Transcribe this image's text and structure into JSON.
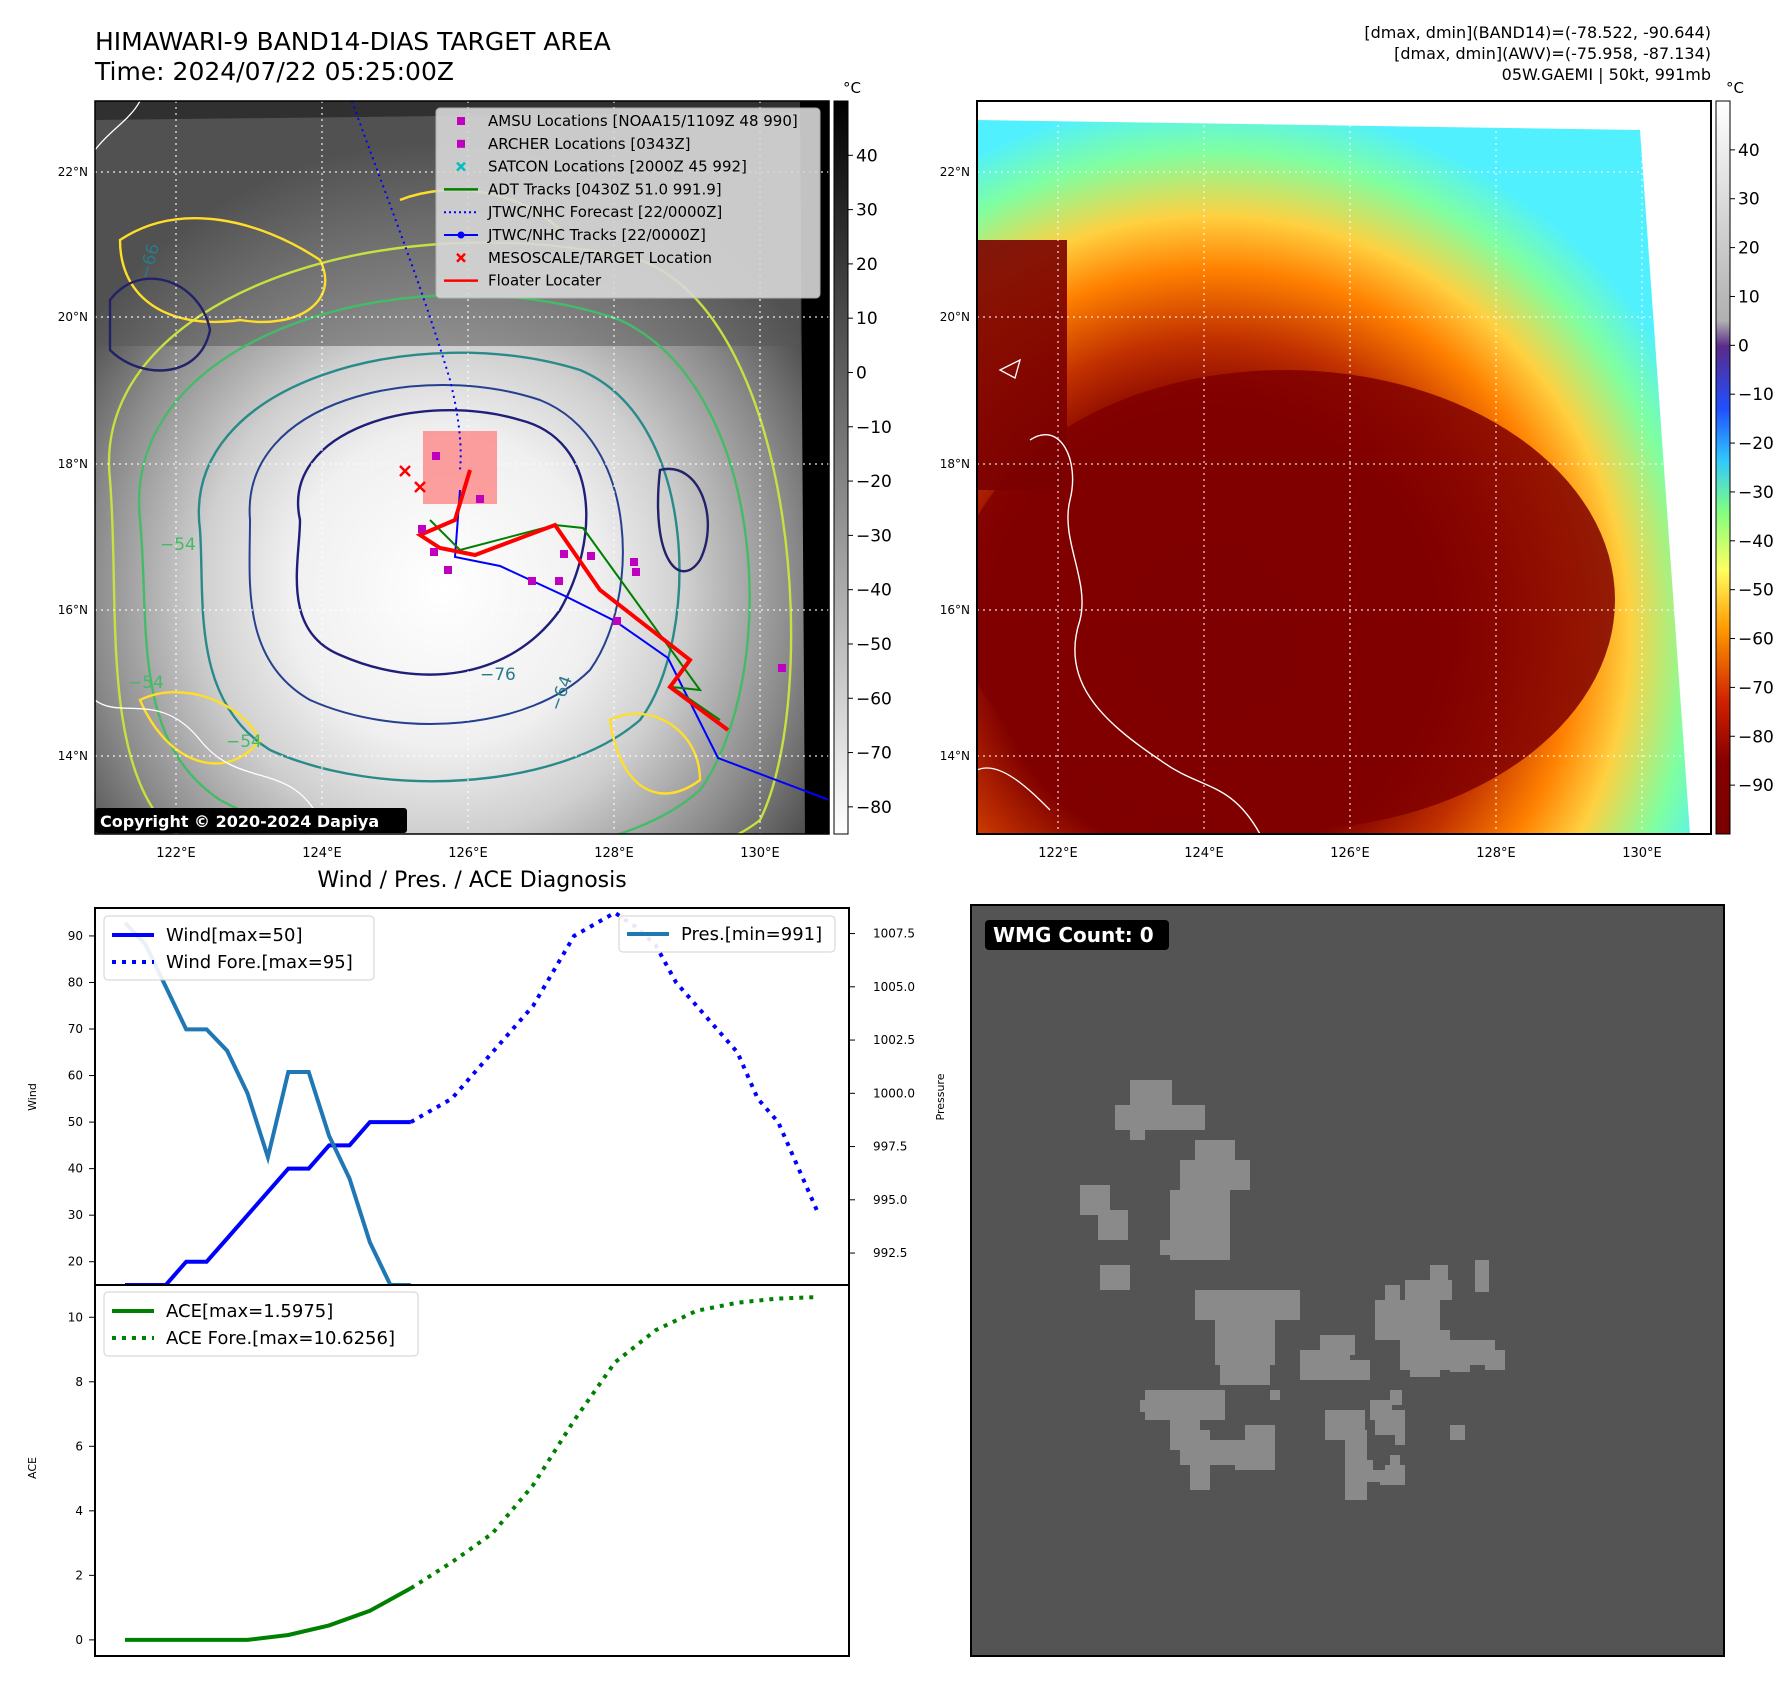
{
  "header": {
    "title_line1": "HIMAWARI-9 BAND14-DIAS TARGET AREA",
    "title_line2": "Time: 2024/07/22 05:25:00Z",
    "info_line1": "[dmax, dmin](BAND14)=(-78.522, -90.644)",
    "info_line2": "[dmax, dmin](AWV)=(-75.958, -87.134)",
    "info_line3": "05W.GAEMI | 50kt, 991mb"
  },
  "map_left": {
    "colorbar_unit": "°C",
    "colorbar_ticks": [
      40,
      30,
      20,
      10,
      0,
      -10,
      -20,
      -30,
      -40,
      -50,
      -60,
      -70,
      -80
    ],
    "lat_labels": [
      "22°N",
      "20°N",
      "18°N",
      "16°N",
      "14°N"
    ],
    "lon_labels": [
      "122°E",
      "124°E",
      "126°E",
      "128°E",
      "130°E"
    ],
    "contour_labels": [
      "−76",
      "−64",
      "−54",
      "−54",
      "−66",
      "−54"
    ],
    "copyright": "Copyright © 2020-2024 Dapiya",
    "legend": [
      {
        "label": "AMSU Locations [NOAA15/1109Z 48 990]",
        "marker": "square",
        "color": "#bf00bf"
      },
      {
        "label": "ARCHER Locations [0343Z]",
        "marker": "square",
        "color": "#bf00bf"
      },
      {
        "label": "SATCON Locations [2000Z 45 992]",
        "marker": "x",
        "color": "#00bfbf"
      },
      {
        "label": "ADT Tracks [0430Z 51.0 991.9]",
        "marker": "line",
        "color": "#008000"
      },
      {
        "label": "JTWC/NHC Forecast [22/0000Z]",
        "marker": "dotted",
        "color": "#0000ff"
      },
      {
        "label": "JTWC/NHC Tracks [22/0000Z]",
        "marker": "line-dot",
        "color": "#0000ff"
      },
      {
        "label": "MESOSCALE/TARGET Location",
        "marker": "x",
        "color": "#ff0000"
      },
      {
        "label": "Floater Locater",
        "marker": "line",
        "color": "#ff0000"
      }
    ]
  },
  "map_right": {
    "colorbar_unit": "°C",
    "colorbar_ticks": [
      40,
      30,
      20,
      10,
      0,
      -10,
      -20,
      -30,
      -40,
      -50,
      -60,
      -70,
      -80,
      -90
    ],
    "lat_labels": [
      "22°N",
      "20°N",
      "18°N",
      "16°N",
      "14°N"
    ],
    "lon_labels": [
      "122°E",
      "124°E",
      "126°E",
      "128°E",
      "130°E"
    ]
  },
  "diagnosis": {
    "title": "Wind / Pres. / ACE Diagnosis"
  },
  "wmg": {
    "badge": "WMG Count: 0"
  },
  "colors": {
    "wind": "#0000ff",
    "pressure": "#1f77b4",
    "ace": "#008000",
    "wmg_background": "#545454",
    "wmg_cells": "#8a8a8a"
  },
  "chart_data": [
    {
      "type": "line",
      "title": "",
      "ylabel": "Wind",
      "ylim": [
        15,
        96
      ],
      "yticks": [
        20,
        30,
        40,
        50,
        60,
        70,
        80,
        90
      ],
      "x_index_range": [
        0,
        34
      ],
      "series": [
        {
          "name": "Wind[max=50]",
          "style": "solid",
          "color": "#0000ff",
          "x": [
            0,
            1,
            2,
            3,
            4,
            5,
            6,
            7,
            8,
            9,
            10,
            11,
            12,
            13,
            14
          ],
          "values": [
            15,
            15,
            15,
            20,
            20,
            25,
            30,
            35,
            40,
            40,
            45,
            45,
            50,
            50,
            50
          ]
        },
        {
          "name": "Wind Fore.[max=95]",
          "style": "dotted",
          "color": "#0000ff",
          "x": [
            14,
            16,
            18,
            20,
            22,
            24,
            25,
            26,
            27,
            28,
            29,
            30,
            31,
            32,
            33,
            34
          ],
          "values": [
            50,
            55,
            65,
            75,
            90,
            95,
            92,
            88,
            80,
            75,
            70,
            65,
            55,
            50,
            40,
            30
          ]
        }
      ]
    },
    {
      "type": "line",
      "title": "",
      "ylabel": "Pressure",
      "ylim": [
        991.0,
        1008.7
      ],
      "yticks": [
        992.5,
        995.0,
        997.5,
        1000.0,
        1002.5,
        1005.0,
        1007.5
      ],
      "x_index_range": [
        0,
        34
      ],
      "series": [
        {
          "name": "Pres.[min=991]",
          "style": "solid",
          "color": "#1f77b4",
          "x": [
            0,
            1,
            2,
            3,
            4,
            5,
            6,
            7,
            8,
            9,
            10,
            11,
            12,
            13,
            14
          ],
          "values": [
            1008,
            1007,
            1005,
            1003,
            1003,
            1002,
            1000,
            997,
            1001,
            1001,
            998,
            996,
            993,
            991,
            991
          ]
        }
      ]
    },
    {
      "type": "line",
      "title": "",
      "ylabel": "ACE",
      "ylim": [
        -0.5,
        11
      ],
      "yticks": [
        0,
        2,
        4,
        6,
        8,
        10
      ],
      "x_index_range": [
        0,
        34
      ],
      "series": [
        {
          "name": "ACE[max=1.5975]",
          "style": "solid",
          "color": "#008000",
          "x": [
            0,
            2,
            4,
            6,
            8,
            10,
            12,
            14
          ],
          "values": [
            0,
            0,
            0,
            0,
            0.15,
            0.45,
            0.9,
            1.5975
          ]
        },
        {
          "name": "ACE Fore.[max=10.6256]",
          "style": "dotted",
          "color": "#008000",
          "x": [
            14,
            16,
            18,
            20,
            22,
            24,
            26,
            28,
            30,
            32,
            34
          ],
          "values": [
            1.6,
            2.4,
            3.3,
            4.8,
            6.8,
            8.6,
            9.6,
            10.2,
            10.45,
            10.58,
            10.6256
          ]
        }
      ]
    }
  ]
}
